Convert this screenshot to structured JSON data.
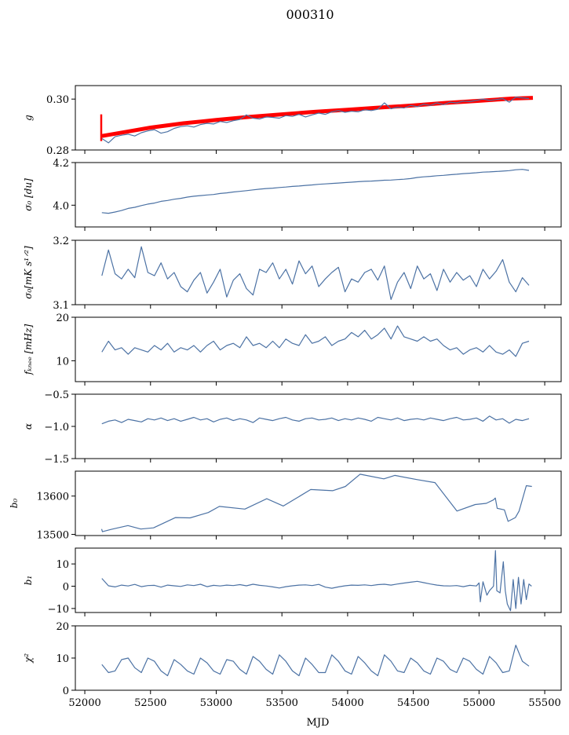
{
  "chart_data": {
    "type": "line",
    "title": "000310",
    "xlabel": "MJD",
    "xlim": [
      51928,
      55625
    ],
    "xticks": [
      52000,
      52500,
      53000,
      53500,
      54000,
      54500,
      55000,
      55500
    ],
    "grid": false,
    "colors": {
      "series": "#4c72a4",
      "model": "#ff0000",
      "axes": "#000000"
    },
    "grid_x": {
      "start": 52130,
      "step": 50
    },
    "panels": [
      {
        "id": "g",
        "ylabel": "g",
        "ylim": [
          0.28,
          0.3053
        ],
        "yticks": [
          0.28,
          0.3
        ],
        "ytick_labels": [
          "0.28",
          "0.30"
        ],
        "model": {
          "name": "g-model",
          "spike": {
            "x": 52125,
            "y": [
              0.2835,
              0.294
            ]
          },
          "x": [
            52130,
            52300,
            52500,
            52750,
            53000,
            53250,
            53500,
            53750,
            54000,
            54250,
            54500,
            54750,
            55000,
            55250,
            55410
          ],
          "y": [
            0.2855,
            0.287,
            0.2888,
            0.2905,
            0.2918,
            0.293,
            0.294,
            0.295,
            0.2958,
            0.2967,
            0.2975,
            0.2985,
            0.2993,
            0.3002,
            0.3005
          ]
        },
        "values": [
          0.2845,
          0.2828,
          0.2852,
          0.2858,
          0.2862,
          0.2855,
          0.2868,
          0.2875,
          0.288,
          0.2866,
          0.2872,
          0.2885,
          0.2892,
          0.2895,
          0.289,
          0.29,
          0.2905,
          0.2902,
          0.2912,
          0.2908,
          0.2915,
          0.292,
          0.2938,
          0.2925,
          0.2922,
          0.293,
          0.2928,
          0.2925,
          0.2935,
          0.2932,
          0.294,
          0.293,
          0.2938,
          0.2945,
          0.294,
          0.295,
          0.2955,
          0.2948,
          0.2952,
          0.295,
          0.2958,
          0.2955,
          0.296,
          0.2985,
          0.2962,
          0.2968,
          0.2965,
          0.2975,
          0.297,
          0.298,
          0.2975,
          0.2985,
          0.2978,
          0.2988,
          0.2985,
          0.2992,
          0.299,
          0.2995,
          0.3,
          0.2995,
          0.2998,
          0.3002,
          0.2988,
          0.3008,
          0.3005,
          0.3002
        ]
      },
      {
        "id": "sigma0-du",
        "ylabel": "σ₀ [du]",
        "ylim": [
          3.898,
          4.2
        ],
        "yticks": [
          4.0,
          4.2
        ],
        "ytick_labels": [
          "4.0",
          "4.2"
        ],
        "values": [
          3.965,
          3.962,
          3.968,
          3.975,
          3.985,
          3.99,
          3.998,
          4.005,
          4.01,
          4.018,
          4.022,
          4.028,
          4.032,
          4.038,
          4.042,
          4.045,
          4.048,
          4.05,
          4.055,
          4.058,
          4.062,
          4.065,
          4.068,
          4.072,
          4.075,
          4.078,
          4.08,
          4.083,
          4.085,
          4.088,
          4.09,
          4.093,
          4.095,
          4.098,
          4.1,
          4.102,
          4.104,
          4.106,
          4.108,
          4.11,
          4.112,
          4.113,
          4.115,
          4.117,
          4.118,
          4.12,
          4.122,
          4.125,
          4.13,
          4.133,
          4.135,
          4.138,
          4.14,
          4.143,
          4.145,
          4.148,
          4.15,
          4.152,
          4.155,
          4.156,
          4.158,
          4.16,
          4.162,
          4.166,
          4.168,
          4.163
        ]
      },
      {
        "id": "sigma0-mk",
        "ylabel": "σ₀[mK s¹ᐟ²]",
        "ylim": [
          3.1,
          3.2
        ],
        "yticks": [
          3.1,
          3.2
        ],
        "ytick_labels": [
          "3.1",
          "3.2"
        ],
        "values": [
          3.145,
          3.185,
          3.148,
          3.14,
          3.155,
          3.142,
          3.19,
          3.15,
          3.145,
          3.165,
          3.14,
          3.15,
          3.128,
          3.12,
          3.138,
          3.15,
          3.118,
          3.135,
          3.155,
          3.112,
          3.138,
          3.148,
          3.125,
          3.115,
          3.155,
          3.15,
          3.165,
          3.14,
          3.155,
          3.132,
          3.168,
          3.148,
          3.16,
          3.128,
          3.14,
          3.15,
          3.158,
          3.12,
          3.14,
          3.135,
          3.15,
          3.155,
          3.138,
          3.16,
          3.108,
          3.135,
          3.15,
          3.125,
          3.16,
          3.14,
          3.148,
          3.122,
          3.155,
          3.135,
          3.15,
          3.138,
          3.145,
          3.128,
          3.155,
          3.14,
          3.152,
          3.17,
          3.135,
          3.12,
          3.142,
          3.13
        ]
      },
      {
        "id": "fknee",
        "ylabel": "fₖₙₑₑ [mHz]",
        "ylim": [
          5.2,
          20
        ],
        "yticks": [
          10,
          20
        ],
        "ytick_labels": [
          "10",
          "20"
        ],
        "values": [
          12.0,
          14.5,
          12.5,
          13.0,
          11.5,
          13.0,
          12.5,
          12.0,
          13.5,
          12.5,
          14.0,
          12.0,
          13.0,
          12.5,
          13.5,
          12.0,
          13.5,
          14.5,
          12.5,
          13.5,
          14.0,
          13.0,
          15.5,
          13.5,
          14.0,
          13.0,
          14.5,
          13.0,
          15.0,
          14.0,
          13.5,
          16.0,
          14.0,
          14.5,
          15.5,
          13.5,
          14.5,
          15.0,
          16.5,
          15.5,
          17.0,
          15.0,
          16.0,
          17.5,
          15.0,
          18.0,
          15.5,
          15.0,
          14.5,
          15.5,
          14.5,
          15.0,
          13.5,
          12.5,
          13.0,
          11.5,
          12.5,
          13.0,
          12.0,
          13.5,
          12.0,
          11.5,
          12.5,
          11.0,
          14.0,
          14.5
        ]
      },
      {
        "id": "alpha",
        "ylabel": "α",
        "ylim": [
          -1.5,
          -0.5
        ],
        "yticks": [
          -1.5,
          -1.0,
          -0.5
        ],
        "ytick_labels": [
          "−1.5",
          "−1.0",
          "−0.5"
        ],
        "values": [
          -0.96,
          -0.92,
          -0.9,
          -0.94,
          -0.89,
          -0.91,
          -0.93,
          -0.88,
          -0.9,
          -0.87,
          -0.91,
          -0.88,
          -0.92,
          -0.89,
          -0.86,
          -0.9,
          -0.88,
          -0.93,
          -0.89,
          -0.87,
          -0.91,
          -0.88,
          -0.9,
          -0.94,
          -0.87,
          -0.89,
          -0.91,
          -0.88,
          -0.86,
          -0.9,
          -0.92,
          -0.88,
          -0.87,
          -0.9,
          -0.89,
          -0.87,
          -0.91,
          -0.88,
          -0.9,
          -0.87,
          -0.89,
          -0.92,
          -0.86,
          -0.88,
          -0.9,
          -0.87,
          -0.91,
          -0.89,
          -0.88,
          -0.9,
          -0.87,
          -0.89,
          -0.91,
          -0.88,
          -0.86,
          -0.9,
          -0.89,
          -0.87,
          -0.92,
          -0.84,
          -0.9,
          -0.88,
          -0.95,
          -0.89,
          -0.91,
          -0.88
        ]
      },
      {
        "id": "b0",
        "ylabel": "b₀",
        "ylim": [
          13497,
          13665
        ],
        "yticks": [
          13500,
          13600
        ],
        "ytick_labels": [
          "13500",
          "13600"
        ],
        "x": [
          52128,
          52134,
          52200,
          52328,
          52426,
          52523,
          52690,
          52801,
          52940,
          53024,
          53218,
          53385,
          53511,
          53719,
          53886,
          53983,
          54095,
          54276,
          54359,
          54526,
          54665,
          54832,
          54971,
          55055,
          55110,
          55124,
          55138,
          55193,
          55221,
          55277,
          55305,
          55360,
          55402
        ],
        "y": [
          13514,
          13507,
          13513,
          13523,
          13514,
          13517,
          13544,
          13543,
          13557,
          13573,
          13566,
          13593,
          13574,
          13617,
          13614,
          13625,
          13657,
          13645,
          13654,
          13643,
          13635,
          13561,
          13578,
          13581,
          13590,
          13595,
          13568,
          13564,
          13534,
          13544,
          13561,
          13627,
          13625
        ]
      },
      {
        "id": "b1",
        "ylabel": "b₁",
        "ylim": [
          -11.8,
          17.1
        ],
        "yticks": [
          -10,
          0,
          10
        ],
        "ytick_labels": [
          "−10",
          "0",
          "10"
        ],
        "values": [
          3.5,
          0.2,
          -0.3,
          0.5,
          0.1,
          0.8,
          -0.2,
          0.3,
          0.4,
          -0.4,
          0.5,
          0.2,
          -0.1,
          0.6,
          0.3,
          0.9,
          -0.2,
          0.4,
          0.1,
          0.5,
          0.3,
          0.7,
          0.2,
          0.9,
          0.4,
          0.1,
          -0.3,
          -0.8,
          -0.2,
          0.2,
          0.5,
          0.6,
          0.3,
          0.8,
          -0.4,
          -0.9,
          -0.3,
          0.2,
          0.5,
          0.4,
          0.6,
          0.3,
          0.7,
          0.9,
          0.5,
          1.0,
          1.4,
          1.8,
          2.2,
          1.6,
          1.0,
          0.5,
          0.2,
          0.1,
          0.3,
          -0.2,
          0.4,
          0.1
        ],
        "extra_x": [
          55000,
          55010,
          55030,
          55060,
          55080,
          55110,
          55125,
          55135,
          55160,
          55185,
          55200,
          55215,
          55240,
          55260,
          55280,
          55300,
          55320,
          55340,
          55360,
          55380,
          55400
        ],
        "extra_y": [
          1.5,
          -7,
          2,
          -4,
          -2,
          0,
          16,
          -2,
          -3,
          11,
          -2,
          -8,
          -11,
          3,
          -10,
          4,
          -8,
          3,
          -6,
          1,
          0
        ]
      },
      {
        "id": "chi2",
        "ylabel": "χ²",
        "ylim": [
          0,
          20
        ],
        "yticks": [
          0,
          10,
          20
        ],
        "ytick_labels": [
          "0",
          "10",
          "20"
        ],
        "xlabels": true,
        "values": [
          8,
          5.5,
          6,
          9.5,
          10,
          7,
          5.5,
          10,
          9,
          6,
          4.5,
          9.5,
          8,
          6,
          5,
          10,
          8.5,
          6,
          5,
          9.5,
          9,
          6.5,
          5,
          10.5,
          9,
          6.5,
          5,
          11,
          9,
          6,
          4.5,
          10,
          8,
          5.5,
          5.5,
          11,
          9,
          6,
          5,
          10.5,
          8.5,
          6,
          4.5,
          11,
          9,
          6,
          5.5,
          10,
          8.5,
          6,
          5,
          10,
          9,
          6.5,
          5.5,
          10,
          9,
          6.5,
          5,
          10.5,
          8.5,
          5.5,
          6,
          14,
          9,
          7.5
        ]
      }
    ]
  }
}
